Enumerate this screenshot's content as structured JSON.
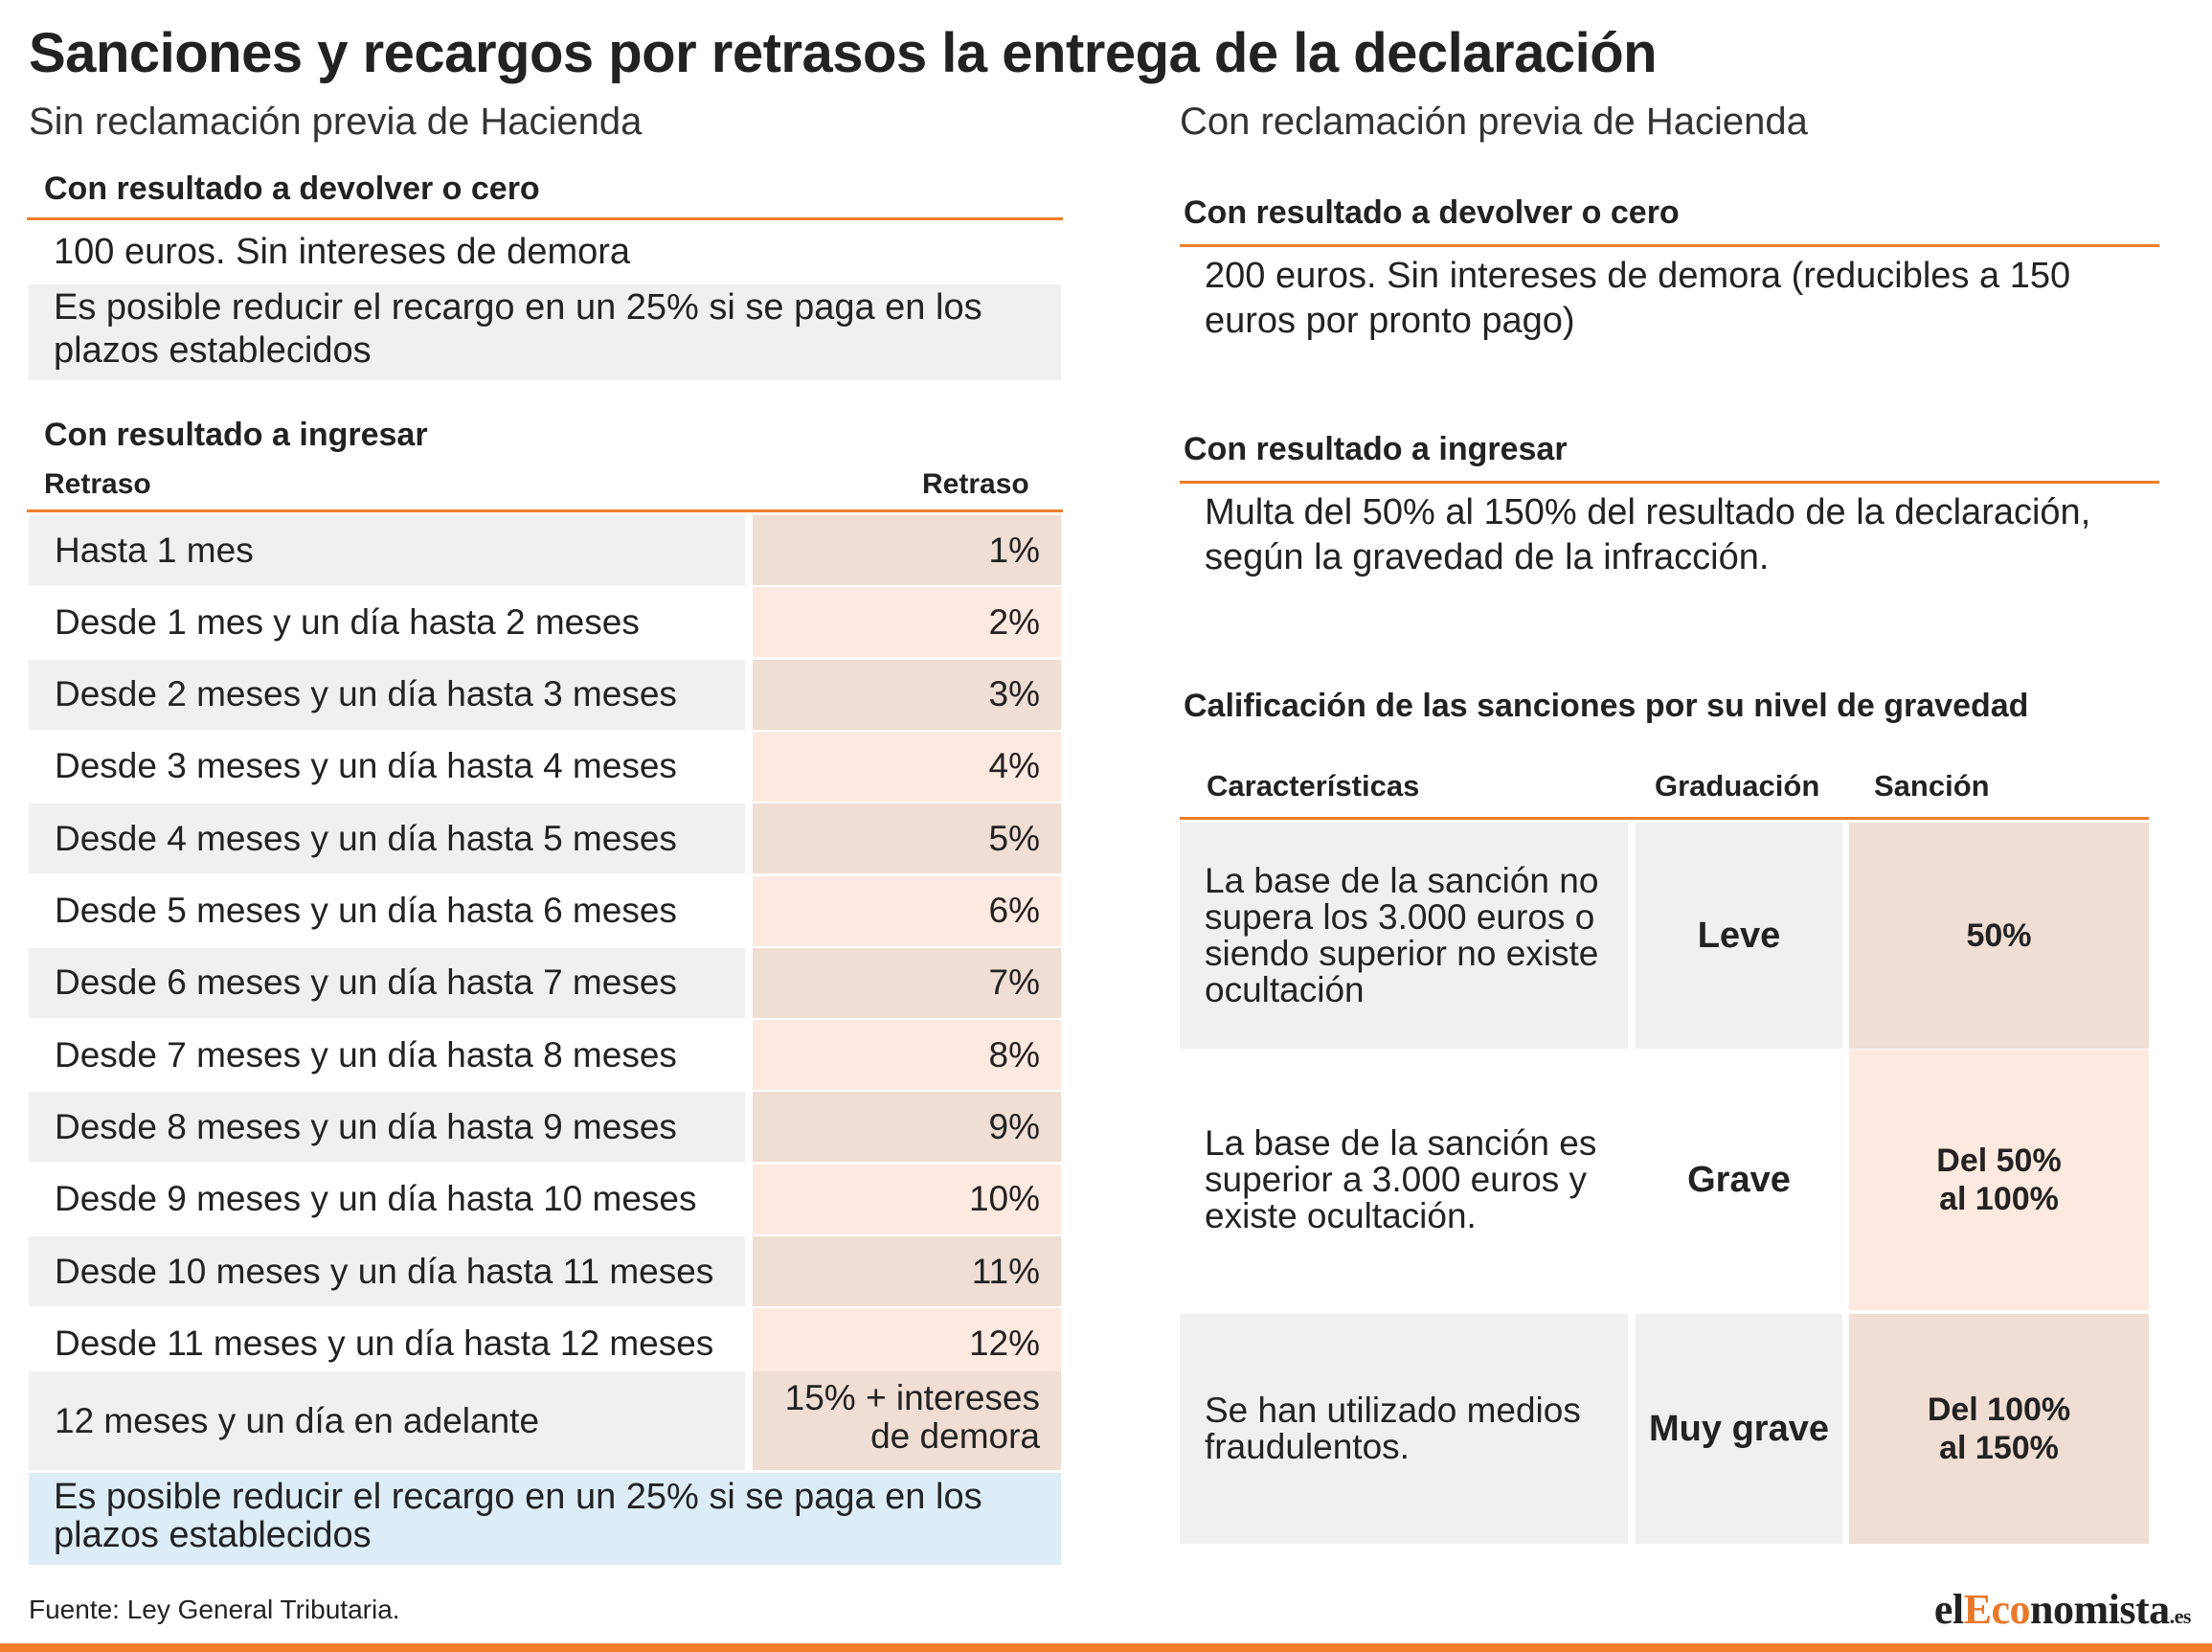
{
  "title": "Sanciones y recargos por retrasos la entrega de la declaración",
  "left": {
    "subtitle": "Sin reclamación previa de Hacienda",
    "devolver": {
      "heading": "Con resultado a devolver o cero",
      "line1": "100 euros. Sin intereses de demora",
      "note": "Es posible reducir el recargo en un 25% si se paga en los plazos establecidos"
    },
    "ingresar": {
      "heading": "Con resultado a ingresar",
      "col1": "Retraso",
      "col2": "Retraso",
      "rows": [
        {
          "label": "Hasta 1 mes",
          "value": "1%"
        },
        {
          "label": "Desde 1 mes y un día hasta 2 meses",
          "value": "2%"
        },
        {
          "label": "Desde 2 meses y un día hasta 3 meses",
          "value": "3%"
        },
        {
          "label": "Desde 3 meses y un día hasta 4 meses",
          "value": "4%"
        },
        {
          "label": "Desde 4 meses y un día hasta 5 meses",
          "value": "5%"
        },
        {
          "label": "Desde 5 meses y un día hasta 6 meses",
          "value": "6%"
        },
        {
          "label": "Desde 6 meses y un día hasta 7 meses",
          "value": "7%"
        },
        {
          "label": "Desde 7 meses y un día hasta 8 meses",
          "value": "8%"
        },
        {
          "label": "Desde 8 meses y un día hasta 9 meses",
          "value": "9%"
        },
        {
          "label": "Desde 9 meses y un día hasta 10 meses",
          "value": "10%"
        },
        {
          "label": "Desde 10 meses y un día hasta 11 meses",
          "value": "11%"
        },
        {
          "label": "Desde 11 meses y un día hasta 12 meses",
          "value": "12%"
        }
      ],
      "last_label": "12 meses y un día en adelante",
      "last_value_1": "15% + intereses",
      "last_value_2": "de demora",
      "note": "Es posible reducir el recargo en un 25% si se paga en los plazos establecidos"
    }
  },
  "right": {
    "subtitle": "Con reclamación previa de Hacienda",
    "devolver": {
      "heading": "Con resultado a devolver o cero",
      "text": "200 euros. Sin intereses de demora (reducibles a 150 euros por pronto pago)"
    },
    "ingresar": {
      "heading": "Con resultado a ingresar",
      "text": "Multa del 50% al 150% del resultado de la declaración, según la gravedad de la infracción."
    },
    "calificacion": {
      "heading": "Calificación de las sanciones por su nivel de gravedad",
      "col_caracteristicas": "Características",
      "col_graduacion": "Graduación",
      "col_sancion": "Sanción",
      "rows": [
        {
          "caracteristicas": "La base de la sanción no supera  los 3.000 euros o siendo superior no existe ocultación",
          "graduacion": "Leve",
          "sancion": "50%"
        },
        {
          "caracteristicas": "La base de la sanción es superior a 3.000 euros y existe ocultación.",
          "graduacion": "Grave",
          "sancion": "Del 50% al 100%"
        },
        {
          "caracteristicas": "Se han utilizado medios fraudulentos.",
          "graduacion": "Muy grave",
          "sancion": "Del 100% al 150%"
        }
      ]
    }
  },
  "source": "Fuente: Ley General Tributaria.",
  "logo": {
    "el": "el",
    "eco": "Eco",
    "nomista": "nomista",
    "es": ".es"
  },
  "colors": {
    "accent": "#f07d2a",
    "gray": "#f0f0f0",
    "peach_dark": "#f0ddd3",
    "peach_light": "#fde9e0",
    "blue": "#dcedf7"
  }
}
